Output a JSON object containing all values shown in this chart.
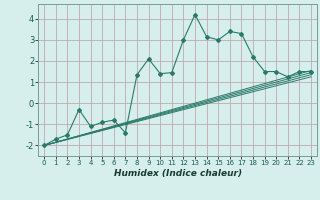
{
  "title": "",
  "xlabel": "Humidex (Indice chaleur)",
  "bg_color": "#d6efed",
  "grid_color": "#c0aaaa",
  "line_color": "#2a7a6a",
  "xlim": [
    -0.5,
    23.5
  ],
  "ylim": [
    -2.5,
    4.7
  ],
  "xticks": [
    0,
    1,
    2,
    3,
    4,
    5,
    6,
    7,
    8,
    9,
    10,
    11,
    12,
    13,
    14,
    15,
    16,
    17,
    18,
    19,
    20,
    21,
    22,
    23
  ],
  "yticks": [
    -2,
    -1,
    0,
    1,
    2,
    3,
    4
  ],
  "series1_x": [
    0,
    1,
    2,
    3,
    4,
    5,
    6,
    7,
    8,
    9,
    10,
    11,
    12,
    13,
    14,
    15,
    16,
    17,
    18,
    19,
    20,
    21,
    22,
    23
  ],
  "series1_y": [
    -2.0,
    -1.7,
    -1.5,
    -0.3,
    -1.1,
    -0.9,
    -0.8,
    -1.4,
    1.35,
    2.1,
    1.4,
    1.45,
    3.0,
    4.2,
    3.15,
    3.0,
    3.4,
    3.3,
    2.2,
    1.5,
    1.5,
    1.25,
    1.5,
    1.5
  ],
  "reg_lines": [
    {
      "x": [
        0,
        23
      ],
      "y": [
        -2.0,
        1.55
      ]
    },
    {
      "x": [
        0,
        23
      ],
      "y": [
        -2.0,
        1.45
      ]
    },
    {
      "x": [
        0,
        23
      ],
      "y": [
        -2.0,
        1.35
      ]
    },
    {
      "x": [
        0,
        23
      ],
      "y": [
        -2.0,
        1.25
      ]
    }
  ]
}
